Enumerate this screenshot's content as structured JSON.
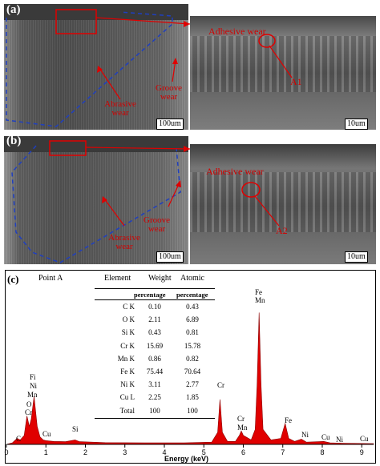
{
  "panel_a": {
    "letter": "(a)",
    "scale_left": "100um",
    "scale_right": "10um",
    "labels": {
      "groove": "Groove wear",
      "abrasive": "Abrasive wear",
      "adhesive": "Adhesive wear",
      "point": "A1"
    }
  },
  "panel_b": {
    "letter": "(b)",
    "scale_left": "100um",
    "scale_right": "10um",
    "labels": {
      "groove": "Groove wear",
      "abrasive": "Abrasive wear",
      "adhesive": "Adhesive wear",
      "point": "A2"
    }
  },
  "panel_c": {
    "letter": "(c)",
    "point_label": "Point A",
    "table": {
      "headers": [
        "Element",
        "Weight",
        "Atomic"
      ],
      "subheaders": [
        "percentage",
        "percentage"
      ],
      "rows": [
        [
          "C K",
          "0.10",
          "0.43"
        ],
        [
          "O K",
          "2.11",
          "6.89"
        ],
        [
          "Si K",
          "0.43",
          "0.81"
        ],
        [
          "Cr K",
          "15.69",
          "15.78"
        ],
        [
          "Mn K",
          "0.86",
          "0.82"
        ],
        [
          "Fe K",
          "75.44",
          "70.64"
        ],
        [
          "Ni K",
          "3.11",
          "2.77"
        ],
        [
          "Cu L",
          "2.25",
          "1.85"
        ],
        [
          "Total",
          "100",
          "100"
        ]
      ]
    },
    "peak_labels": [
      "C",
      "O",
      "Cr",
      "Fi",
      "Ni",
      "Mn",
      "Cu",
      "Si",
      "Cr",
      "Cr",
      "Mn",
      "Fe",
      "Mn",
      "Fe",
      "Ni",
      "Cu",
      "Ni",
      "Cu"
    ],
    "fill_color": "#e00000"
  },
  "chart_data": {
    "type": "area",
    "title": "",
    "xlabel": "Energy (keV)",
    "ylabel": "",
    "xlim": [
      0,
      9.3
    ],
    "ylim": [
      0,
      1.0
    ],
    "xticks": [
      "0",
      "1",
      "2",
      "3",
      "4",
      "5",
      "6",
      "7",
      "8",
      "9"
    ],
    "series": [
      {
        "points": [
          [
            0.0,
            0.0
          ],
          [
            0.15,
            0.01
          ],
          [
            0.27,
            0.04
          ],
          [
            0.35,
            0.03
          ],
          [
            0.45,
            0.06
          ],
          [
            0.52,
            0.19
          ],
          [
            0.58,
            0.12
          ],
          [
            0.63,
            0.17
          ],
          [
            0.7,
            0.32
          ],
          [
            0.78,
            0.12
          ],
          [
            0.85,
            0.05
          ],
          [
            0.93,
            0.03
          ],
          [
            1.0,
            0.025
          ],
          [
            1.2,
            0.02
          ],
          [
            1.5,
            0.018
          ],
          [
            1.74,
            0.03
          ],
          [
            1.85,
            0.018
          ],
          [
            2.5,
            0.012
          ],
          [
            3.5,
            0.01
          ],
          [
            4.5,
            0.01
          ],
          [
            5.2,
            0.015
          ],
          [
            5.35,
            0.08
          ],
          [
            5.41,
            0.3
          ],
          [
            5.47,
            0.08
          ],
          [
            5.6,
            0.02
          ],
          [
            5.8,
            0.02
          ],
          [
            5.9,
            0.06
          ],
          [
            5.95,
            0.09
          ],
          [
            6.0,
            0.06
          ],
          [
            6.2,
            0.03
          ],
          [
            6.3,
            0.1
          ],
          [
            6.35,
            0.4
          ],
          [
            6.4,
            0.88
          ],
          [
            6.45,
            0.4
          ],
          [
            6.5,
            0.1
          ],
          [
            6.7,
            0.03
          ],
          [
            6.95,
            0.04
          ],
          [
            7.06,
            0.14
          ],
          [
            7.15,
            0.04
          ],
          [
            7.3,
            0.02
          ],
          [
            7.47,
            0.035
          ],
          [
            7.6,
            0.015
          ],
          [
            8.04,
            0.02
          ],
          [
            8.2,
            0.01
          ],
          [
            8.5,
            0.008
          ],
          [
            9.3,
            0.005
          ]
        ]
      }
    ]
  }
}
